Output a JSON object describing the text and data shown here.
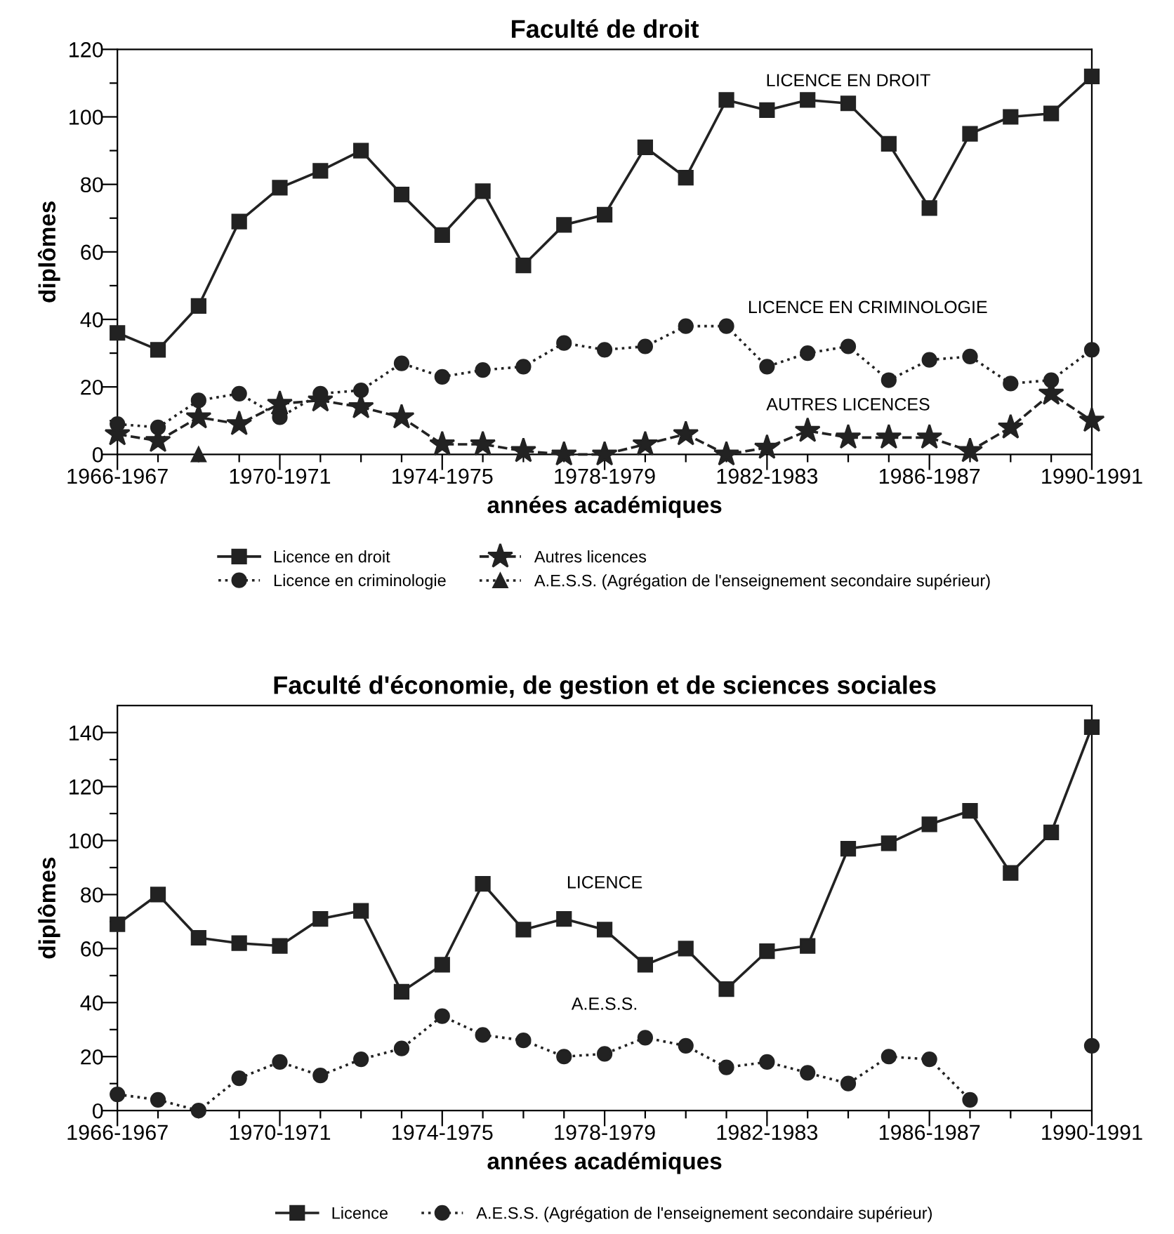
{
  "chart_data": [
    {
      "type": "line",
      "title": "Faculté de droit",
      "xlabel": "années académiques",
      "ylabel": "diplômes",
      "categories": [
        "1966-1967",
        null,
        null,
        null,
        "1970-1971",
        null,
        null,
        null,
        "1974-1975",
        null,
        null,
        null,
        "1978-1979",
        null,
        null,
        null,
        "1982-1983",
        null,
        null,
        null,
        "1986-1987",
        null,
        null,
        null,
        "1990-1991"
      ],
      "ylim": [
        0,
        120
      ],
      "yticks": [
        0,
        {
          "value": 10,
          "label": null
        },
        20,
        {
          "value": 30,
          "label": null
        },
        40,
        {
          "value": 50,
          "label": null
        },
        60,
        {
          "value": 70,
          "label": null
        },
        80,
        {
          "value": 90,
          "label": null
        },
        100,
        {
          "value": 110,
          "label": null
        },
        120
      ],
      "grid": false,
      "legend": "bottom",
      "series": [
        {
          "name": "Licence en droit",
          "color": "#222222",
          "marker": "square",
          "line_style": "solid",
          "values": [
            36,
            31,
            44,
            69,
            79,
            84,
            90,
            77,
            65,
            78,
            56,
            68,
            71,
            91,
            82,
            105,
            102,
            105,
            104,
            92,
            73,
            95,
            100,
            101,
            112
          ]
        },
        {
          "name": "Licence en criminologie",
          "color": "#222222",
          "marker": "circle",
          "line_style": "dotted",
          "values": [
            9,
            8,
            16,
            18,
            11,
            18,
            19,
            27,
            23,
            25,
            26,
            33,
            31,
            32,
            38,
            38,
            26,
            30,
            32,
            22,
            28,
            29,
            21,
            22,
            31
          ]
        },
        {
          "name": "Autres licences",
          "color": "#222222",
          "marker": "star",
          "line_style": "dashed",
          "values": [
            6,
            4,
            11,
            9,
            15,
            16,
            14,
            11,
            3,
            3,
            1,
            0,
            0,
            3,
            6,
            0,
            2,
            7,
            5,
            5,
            5,
            1,
            8,
            18,
            10
          ]
        },
        {
          "name": "A.E.S.S. (Agrégation de l'enseignement secondaire supérieur)",
          "color": "#222222",
          "marker": "triangle",
          "line_style": "dotted",
          "values": [
            null,
            null,
            0,
            null,
            null,
            null,
            null,
            null,
            null,
            null,
            null,
            null,
            null,
            null,
            null,
            null,
            null,
            null,
            null,
            null,
            null,
            null,
            null,
            null,
            null
          ]
        }
      ],
      "annotations": [
        "LICENCE EN DROIT",
        "LICENCE EN CRIMINOLOGIE",
        "AUTRES LICENCES"
      ]
    },
    {
      "type": "line",
      "title": "Faculté d'économie, de gestion et de sciences sociales",
      "xlabel": "années académiques",
      "ylabel": "diplômes",
      "categories": [
        "1966-1967",
        null,
        null,
        null,
        "1970-1971",
        null,
        null,
        null,
        "1974-1975",
        null,
        null,
        null,
        "1978-1979",
        null,
        null,
        null,
        "1982-1983",
        null,
        null,
        null,
        "1986-1987",
        null,
        null,
        null,
        "1990-1991"
      ],
      "ylim": [
        0,
        150
      ],
      "yticks": [
        0,
        {
          "value": 10,
          "label": null
        },
        20,
        {
          "value": 30,
          "label": null
        },
        40,
        {
          "value": 50,
          "label": null
        },
        60,
        {
          "value": 70,
          "label": null
        },
        80,
        {
          "value": 90,
          "label": null
        },
        100,
        {
          "value": 110,
          "label": null
        },
        120,
        {
          "value": 130,
          "label": null
        },
        140
      ],
      "grid": false,
      "legend": "bottom",
      "series": [
        {
          "name": "Licence",
          "color": "#222222",
          "marker": "square",
          "line_style": "solid",
          "values": [
            69,
            80,
            64,
            62,
            61,
            71,
            74,
            44,
            54,
            84,
            67,
            71,
            67,
            54,
            60,
            45,
            59,
            61,
            97,
            99,
            106,
            111,
            88,
            103,
            142
          ]
        },
        {
          "name": "A.E.S.S. (Agrégation de l'enseignement secondaire supérieur)",
          "color": "#222222",
          "marker": "circle",
          "line_style": "dotted",
          "values": [
            6,
            4,
            0,
            12,
            18,
            13,
            19,
            23,
            35,
            28,
            26,
            20,
            21,
            27,
            24,
            16,
            18,
            14,
            10,
            20,
            19,
            4,
            null,
            null,
            24
          ]
        }
      ],
      "annotations": [
        "LICENCE",
        "A.E.S.S."
      ]
    }
  ]
}
